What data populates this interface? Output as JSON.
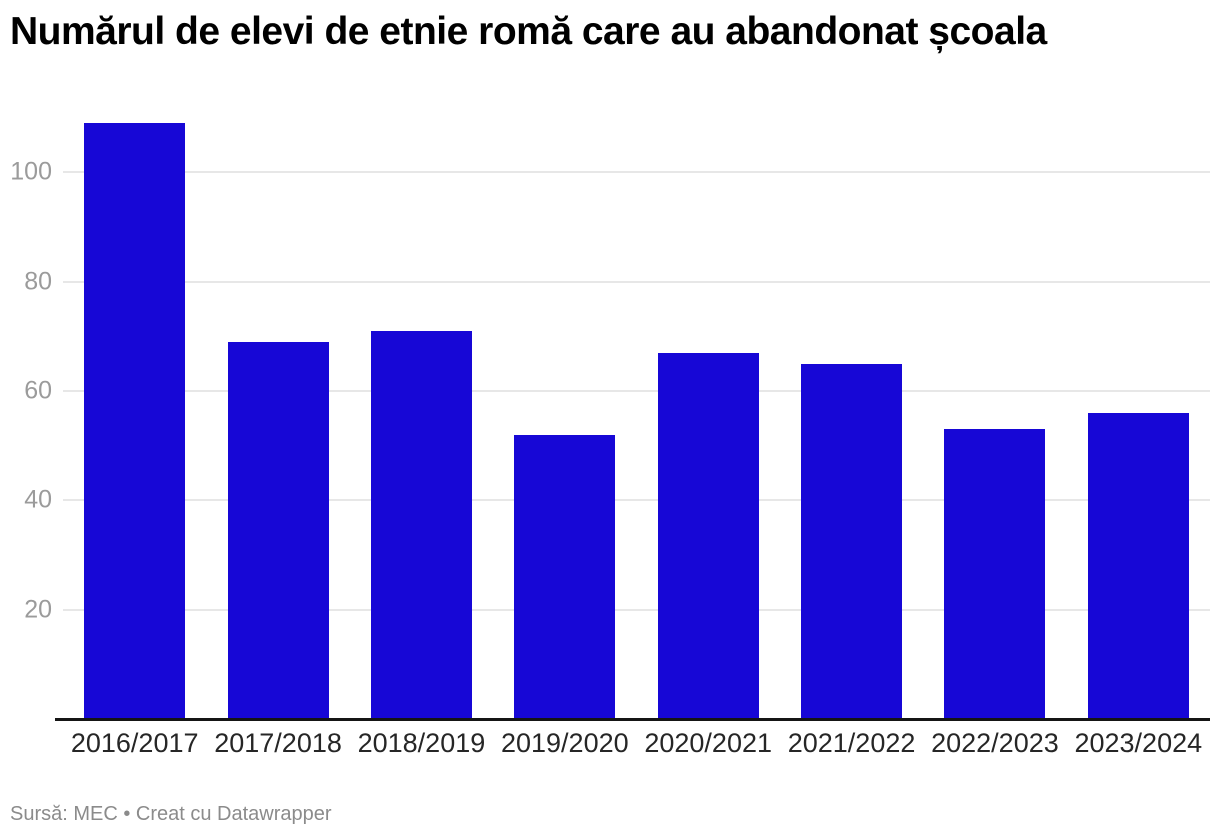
{
  "chart_data": {
    "type": "bar",
    "title": "Numărul de elevi de etnie romă care au abandonat școala",
    "categories": [
      "2016/2017",
      "2017/2018",
      "2018/2019",
      "2019/2020",
      "2020/2021",
      "2021/2022",
      "2022/2023",
      "2023/2024"
    ],
    "values": [
      109,
      69,
      71,
      52,
      67,
      65,
      53,
      56
    ],
    "xlabel": "",
    "ylabel": "",
    "yticks": [
      20,
      40,
      60,
      80,
      100
    ],
    "ylim": [
      0,
      111
    ],
    "grid": true,
    "legend": "none",
    "bar_color": "#1707d6",
    "gridline_color": "#e7e7e7",
    "axis_line_color": "#151515",
    "ytick_color": "#9b9b9b",
    "xtick_color": "#262626"
  },
  "footer": {
    "text": "Sursă: MEC • Creat cu Datawrapper"
  }
}
